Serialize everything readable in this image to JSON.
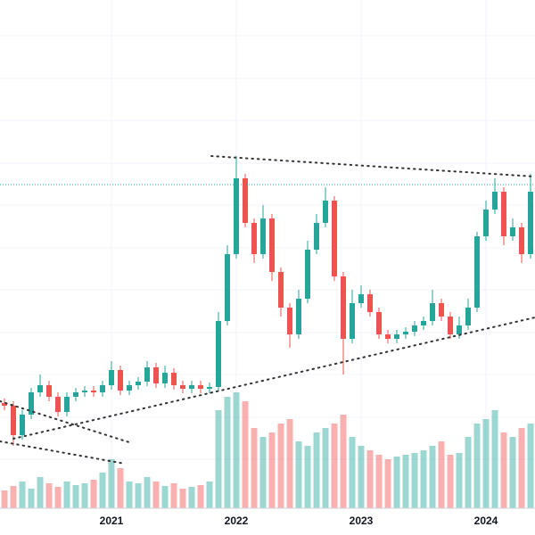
{
  "chart_data": {
    "type": "candlestick",
    "categories": [
      null,
      null,
      null,
      null,
      null,
      null,
      null,
      null,
      null,
      null,
      null,
      null,
      "2021",
      null,
      null,
      null,
      null,
      null,
      null,
      null,
      null,
      null,
      null,
      null,
      null,
      null,
      "2022",
      null,
      null,
      null,
      null,
      null,
      null,
      null,
      null,
      null,
      null,
      null,
      null,
      null,
      "2023",
      null,
      null,
      null,
      null,
      null,
      null,
      null,
      null,
      null,
      null,
      null,
      null,
      null,
      "2024",
      null,
      null,
      null,
      null,
      null
    ],
    "open": [
      118,
      115,
      82,
      105,
      130,
      138,
      125,
      108,
      125,
      130,
      132,
      130,
      138,
      155,
      132,
      138,
      142,
      158,
      140,
      152,
      138,
      134,
      138,
      134,
      136,
      210,
      285,
      370,
      320,
      285,
      325,
      265,
      225,
      195,
      235,
      290,
      320,
      345,
      260,
      190,
      230,
      240,
      220,
      195,
      190,
      195,
      198,
      205,
      210,
      230,
      215,
      195,
      205,
      225,
      305,
      335,
      355,
      305,
      315,
      285
    ],
    "high": [
      123,
      120,
      110,
      135,
      150,
      143,
      130,
      130,
      135,
      137,
      137,
      143,
      165,
      160,
      143,
      147,
      165,
      163,
      160,
      157,
      143,
      143,
      143,
      141,
      220,
      295,
      395,
      375,
      325,
      340,
      330,
      270,
      230,
      245,
      300,
      330,
      360,
      350,
      265,
      245,
      250,
      245,
      225,
      200,
      200,
      203,
      210,
      215,
      245,
      235,
      220,
      215,
      235,
      310,
      345,
      370,
      360,
      325,
      320,
      375
    ],
    "low": [
      110,
      70,
      77,
      100,
      125,
      120,
      103,
      103,
      120,
      125,
      125,
      125,
      133,
      127,
      127,
      133,
      137,
      135,
      135,
      133,
      129,
      129,
      129,
      129,
      131,
      205,
      280,
      315,
      275,
      280,
      255,
      215,
      180,
      190,
      230,
      285,
      315,
      255,
      150,
      185,
      225,
      215,
      190,
      185,
      185,
      190,
      193,
      200,
      205,
      210,
      190,
      190,
      200,
      220,
      300,
      330,
      295,
      300,
      275,
      280
    ],
    "close": [
      115,
      82,
      105,
      130,
      138,
      125,
      108,
      125,
      130,
      132,
      130,
      138,
      155,
      132,
      138,
      142,
      158,
      140,
      152,
      138,
      134,
      138,
      134,
      136,
      210,
      285,
      370,
      320,
      285,
      325,
      265,
      225,
      195,
      235,
      290,
      320,
      345,
      260,
      190,
      230,
      240,
      220,
      195,
      190,
      195,
      198,
      205,
      210,
      230,
      215,
      195,
      205,
      225,
      305,
      335,
      355,
      305,
      315,
      285,
      355
    ],
    "volume": [
      20,
      25,
      30,
      22,
      35,
      28,
      24,
      30,
      26,
      28,
      32,
      40,
      55,
      45,
      30,
      28,
      35,
      30,
      25,
      28,
      22,
      24,
      26,
      30,
      110,
      125,
      130,
      120,
      90,
      80,
      85,
      95,
      100,
      75,
      70,
      85,
      90,
      95,
      105,
      80,
      70,
      65,
      60,
      55,
      58,
      60,
      62,
      65,
      70,
      75,
      60,
      62,
      80,
      95,
      100,
      110,
      85,
      80,
      90,
      95
    ],
    "ylim": [
      0,
      570
    ],
    "up_color": "#26a69a",
    "down_color": "#ef5350"
  }
}
